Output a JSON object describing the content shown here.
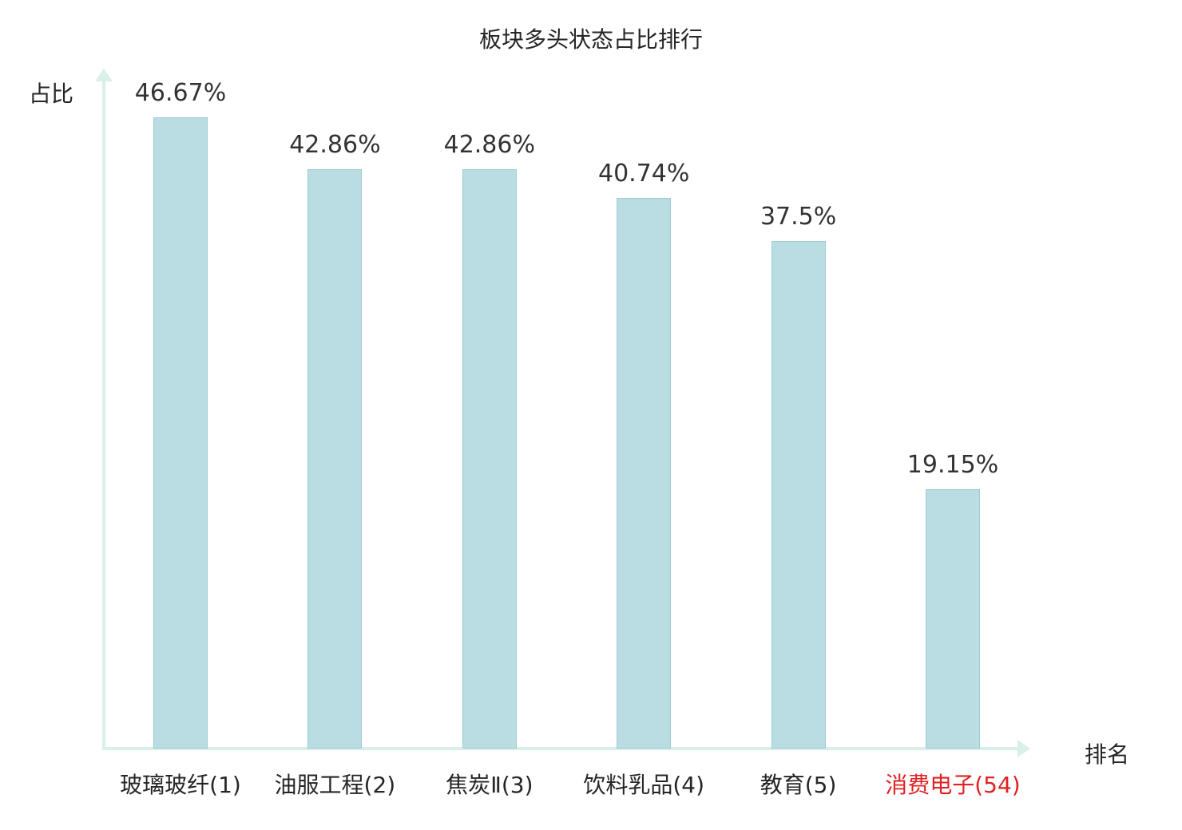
{
  "chart_data": {
    "type": "bar",
    "title": "板块多头状态占比排行",
    "xlabel": "排名",
    "ylabel": "占比",
    "categories": [
      "玻璃玻纤(1)",
      "油服工程(2)",
      "焦炭Ⅱ(3)",
      "饮料乳品(4)",
      "教育(5)",
      "消费电子(54)"
    ],
    "values": [
      46.67,
      42.86,
      42.86,
      40.74,
      37.5,
      19.15
    ],
    "value_labels": [
      "46.67%",
      "42.86%",
      "42.86%",
      "40.74%",
      "37.5%",
      "19.15%"
    ],
    "highlight_index": 5,
    "ylim": [
      0,
      50
    ],
    "grid": false,
    "legend": "none",
    "colors": {
      "bar_fill": "#b9dde2",
      "bar_border": "#9ccdd4",
      "axis": "#daefe7",
      "text": "#333333",
      "highlight": "#e02222"
    }
  }
}
